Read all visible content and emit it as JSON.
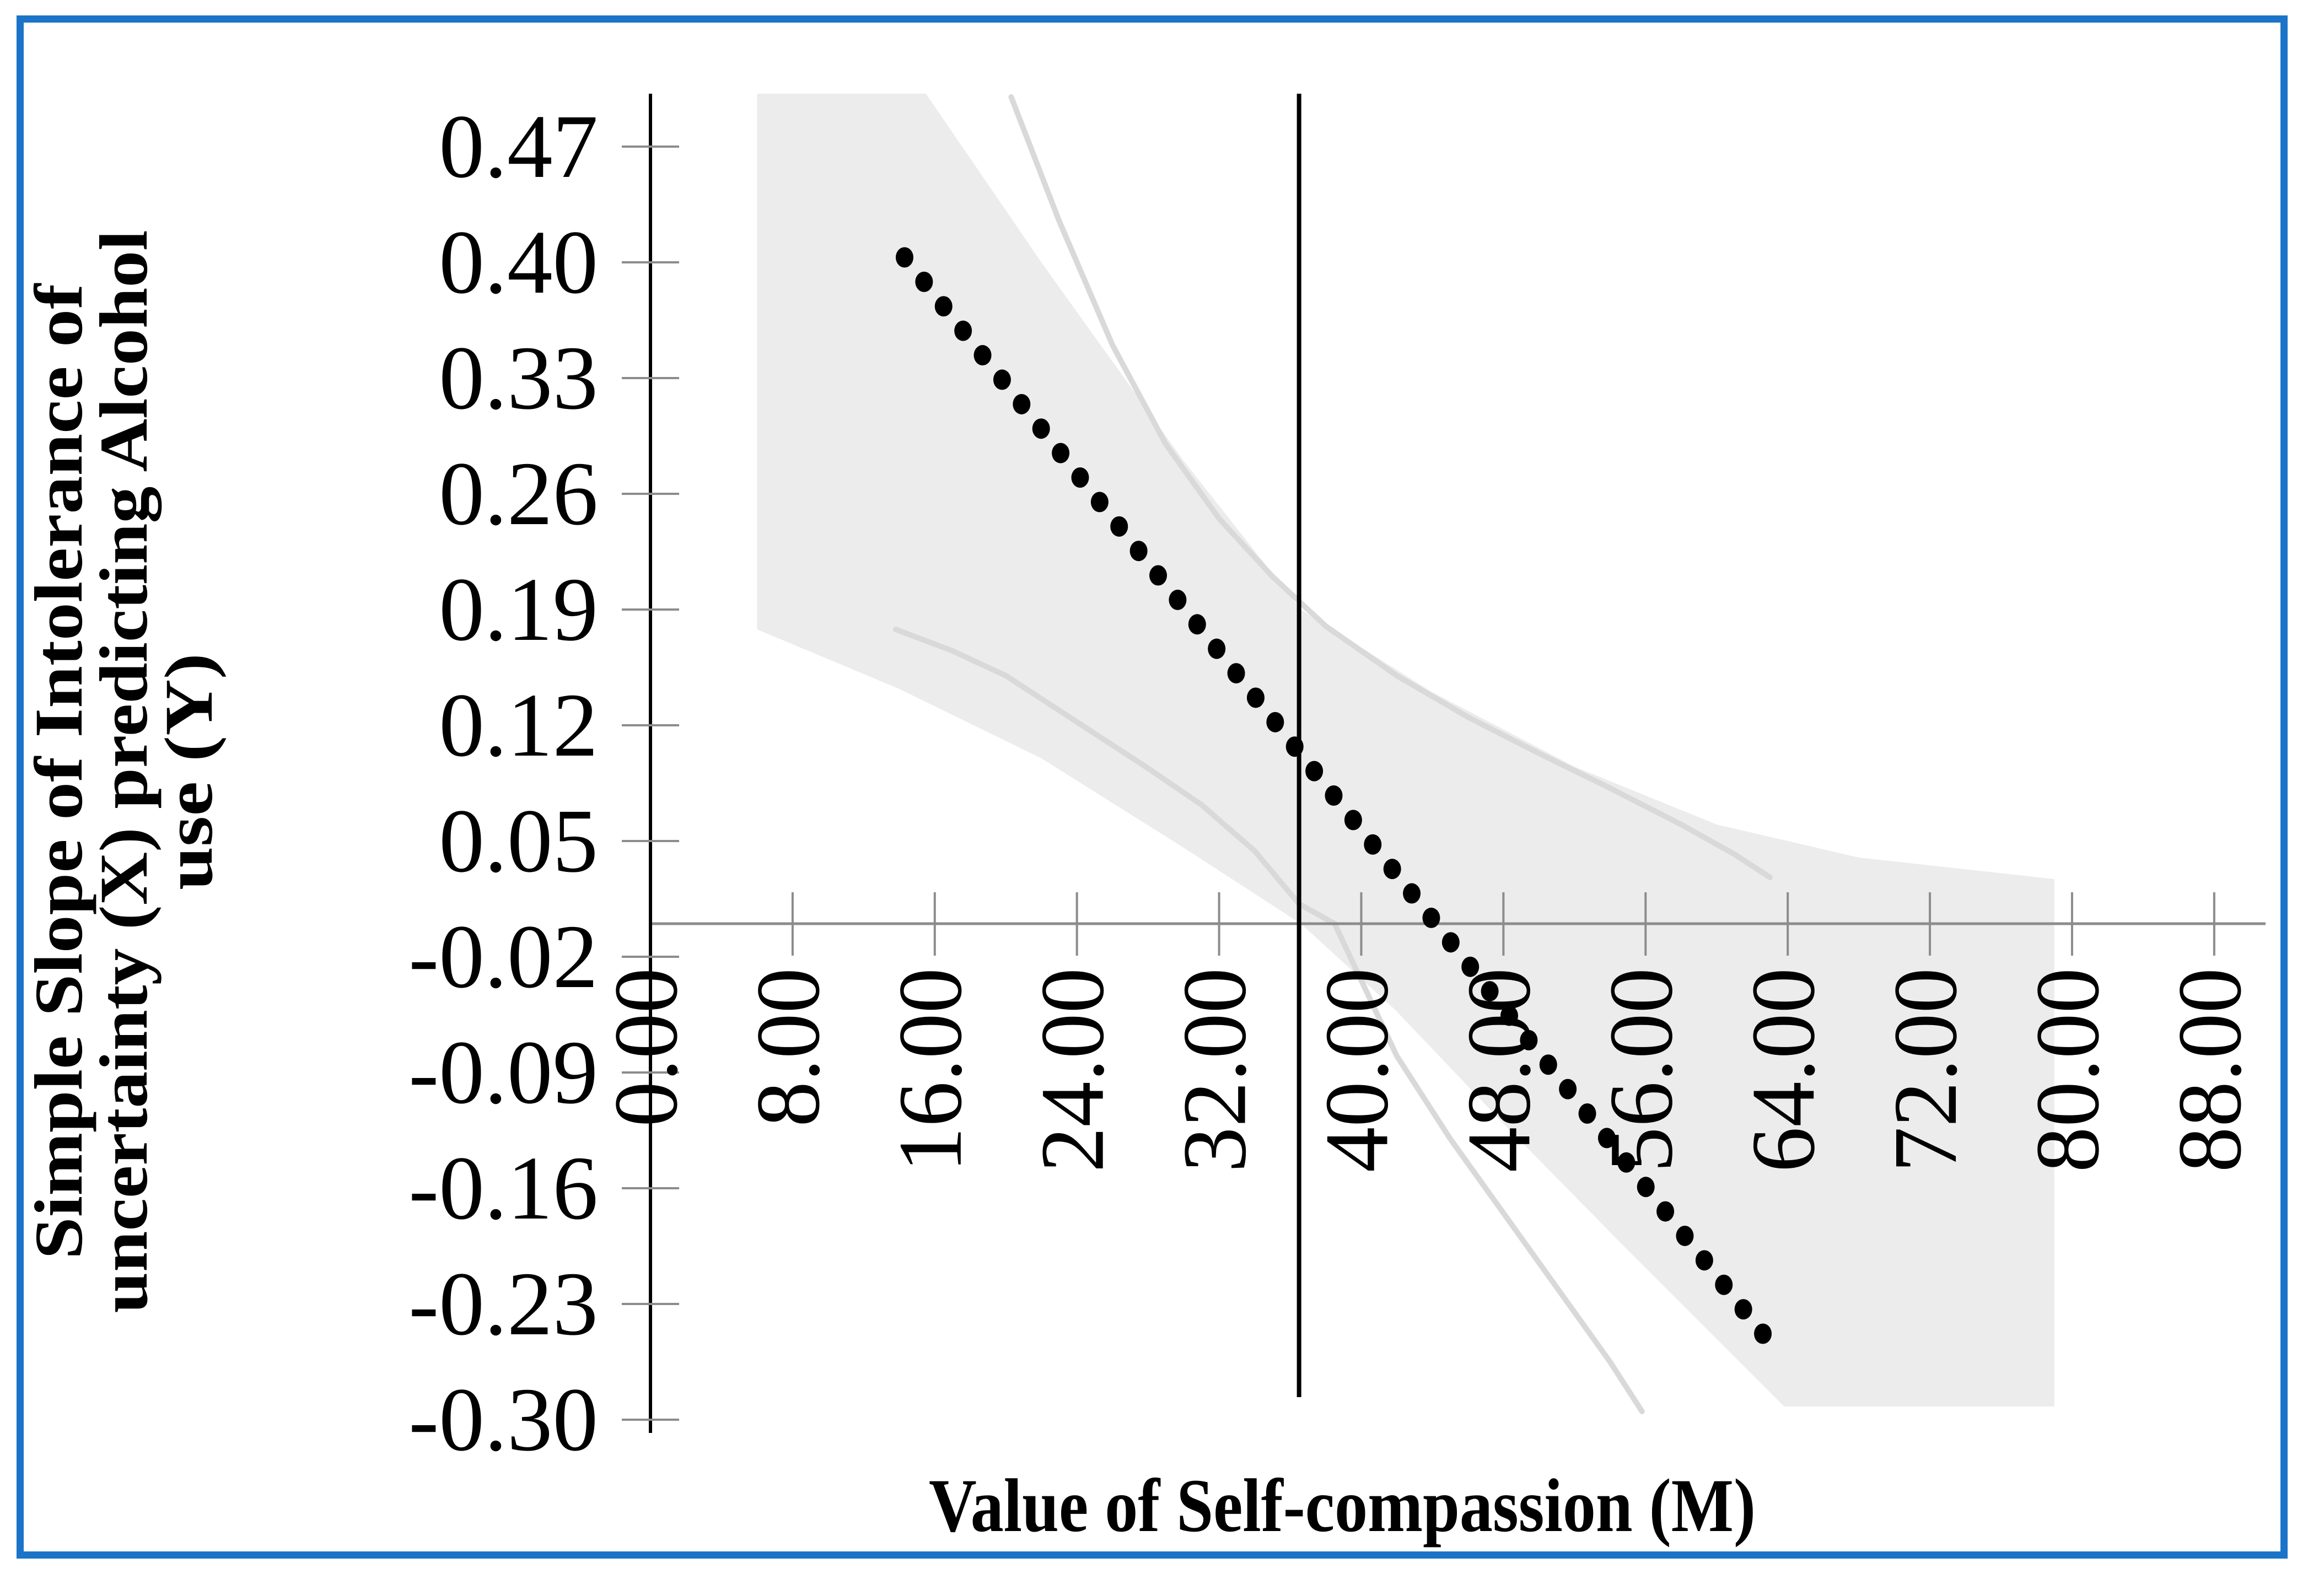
{
  "figure": {
    "border_color": "#1b74c8",
    "background_color": "#ffffff"
  },
  "chart_data": {
    "type": "line",
    "title": "",
    "xlabel": "Value of Self-compassion (M)",
    "ylabel_lines": [
      "Simple Slope of Intolerance of",
      "uncertainty (X) predicting Alcohol",
      "use (Y)"
    ],
    "xlim": [
      0,
      91.2
    ],
    "ylim": [
      -0.308,
      0.502
    ],
    "grid": false,
    "legend_position": "none",
    "x_tick_labels": [
      "0.00",
      "8.00",
      "16.00",
      "24.00",
      "32.00",
      "40.00",
      "48.00",
      "56.00",
      "64.00",
      "72.00",
      "80.00",
      "88.00"
    ],
    "x_tick_values": [
      0,
      8,
      16,
      24,
      32,
      40,
      48,
      56,
      64,
      72,
      80,
      88
    ],
    "y_tick_labels": [
      "0.47",
      "0.40",
      "0.33",
      "0.26",
      "0.19",
      "0.12",
      "0.05",
      "-0.02",
      "-0.09",
      "-0.16",
      "-0.23",
      "-0.30"
    ],
    "y_tick_values": [
      0.47,
      0.4,
      0.33,
      0.26,
      0.19,
      0.12,
      0.05,
      -0.02,
      -0.09,
      -0.16,
      -0.23,
      -0.3
    ],
    "significance_line_x": 36.5,
    "colors": {
      "band": "#ececec",
      "ci_line": "#d9d9d9",
      "dotted_line": "#000000",
      "x_axis": "#8c8c8c",
      "y_axis": "#000000",
      "tick": "#8c8c8c",
      "significance_line": "#000000"
    },
    "series": [
      {
        "name": "simple-slope-estimate",
        "style": "dotted",
        "n_dots": 45,
        "points": [
          [
            14.3,
            0.403
          ],
          [
            62.6,
            -0.248
          ]
        ]
      },
      {
        "name": "upper-confidence-limit",
        "style": "solid",
        "points": [
          [
            20.3,
            0.5
          ],
          [
            23,
            0.425
          ],
          [
            26,
            0.35
          ],
          [
            29,
            0.29
          ],
          [
            32,
            0.245
          ],
          [
            35,
            0.21
          ],
          [
            38,
            0.18
          ],
          [
            42,
            0.15
          ],
          [
            46,
            0.125
          ],
          [
            50,
            0.103
          ],
          [
            54,
            0.082
          ],
          [
            58,
            0.06
          ],
          [
            61,
            0.042
          ],
          [
            63,
            0.028
          ]
        ]
      },
      {
        "name": "lower-confidence-limit",
        "style": "solid",
        "points": [
          [
            13.8,
            0.178
          ],
          [
            17,
            0.165
          ],
          [
            20,
            0.15
          ],
          [
            24,
            0.122
          ],
          [
            28,
            0.094
          ],
          [
            31,
            0.072
          ],
          [
            34,
            0.044
          ],
          [
            36.5,
            0.012
          ],
          [
            38.5,
            0.0
          ],
          [
            42,
            -0.08
          ],
          [
            45,
            -0.13
          ],
          [
            48,
            -0.175
          ],
          [
            51,
            -0.22
          ],
          [
            54,
            -0.265
          ],
          [
            55.8,
            -0.295
          ]
        ]
      }
    ],
    "confidence_region_polygon": [
      [
        6,
        0.502
      ],
      [
        15.5,
        0.502
      ],
      [
        22,
        0.4
      ],
      [
        30,
        0.28
      ],
      [
        36.6,
        0.19
      ],
      [
        44,
        0.14
      ],
      [
        52,
        0.095
      ],
      [
        60,
        0.06
      ],
      [
        68,
        0.04
      ],
      [
        79,
        0.027
      ],
      [
        79,
        -0.292
      ],
      [
        63.8,
        -0.292
      ],
      [
        54.5,
        -0.192
      ],
      [
        48.1,
        -0.122
      ],
      [
        41.9,
        -0.052
      ],
      [
        36.6,
        0.0
      ],
      [
        30,
        0.046
      ],
      [
        22,
        0.1
      ],
      [
        14,
        0.142
      ],
      [
        6,
        0.178
      ]
    ]
  }
}
